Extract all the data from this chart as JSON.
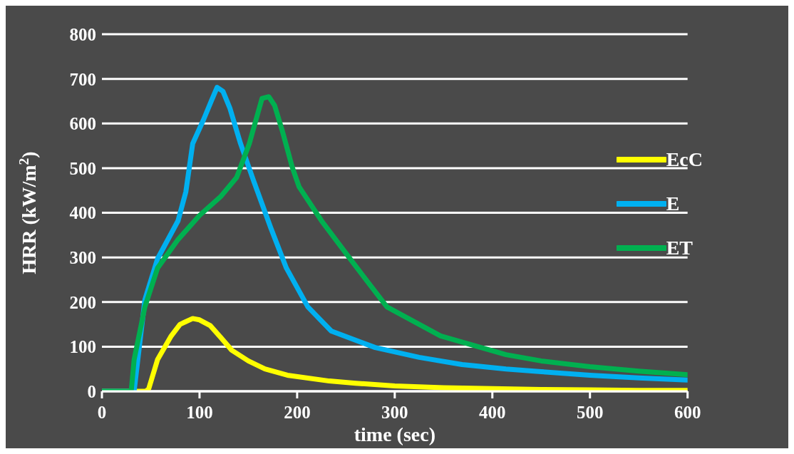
{
  "chart_data": {
    "type": "line",
    "xlabel": "time (sec)",
    "ylabel": "HRR (kW/m$^{2}$)",
    "xlim": [
      0,
      600
    ],
    "xticks": [
      0,
      100,
      200,
      300,
      400,
      500,
      600
    ],
    "ylim": [
      0,
      800
    ],
    "yticks": [
      0,
      100,
      200,
      300,
      400,
      500,
      600,
      700,
      800
    ],
    "grid": "y",
    "legend": "right",
    "marker": "none",
    "line_style": "solid",
    "series": [
      {
        "name": "EcC",
        "color": "#ffff00",
        "x": [
          0,
          45,
          48,
          57,
          71,
          80,
          93,
          100,
          111,
          122,
          133,
          150,
          167,
          190,
          233,
          260,
          300,
          350,
          400,
          450,
          500,
          550,
          600
        ],
        "values": [
          0,
          0,
          6,
          71,
          124,
          150,
          163,
          160,
          147,
          120,
          92,
          68,
          50,
          36,
          23,
          18,
          12,
          8,
          6,
          4,
          3,
          2,
          2
        ]
      },
      {
        "name": "E",
        "color": "#00b0f0",
        "x": [
          0,
          33,
          44,
          57,
          78,
          86,
          93,
          104,
          112,
          118,
          124,
          131,
          142,
          155,
          173,
          189,
          211,
          235,
          280,
          325,
          369,
          414,
          450,
          500,
          550,
          600
        ],
        "values": [
          0,
          0,
          205,
          297,
          382,
          447,
          555,
          608,
          650,
          681,
          672,
          635,
          555,
          474,
          366,
          276,
          189,
          135,
          98,
          76,
          60,
          50,
          44,
          36,
          30,
          25
        ]
      },
      {
        "name": "ET",
        "color": "#00b050",
        "x": [
          0,
          30,
          33,
          44,
          57,
          78,
          100,
          122,
          138,
          151,
          160,
          164,
          171,
          177,
          185,
          195,
          202,
          225,
          258,
          292,
          347,
          414,
          450,
          500,
          550,
          600
        ],
        "values": [
          0,
          0,
          71,
          189,
          276,
          340,
          394,
          437,
          479,
          555,
          625,
          656,
          660,
          640,
          582,
          502,
          458,
          382,
          286,
          189,
          124,
          82,
          68,
          55,
          45,
          37
        ]
      }
    ]
  }
}
